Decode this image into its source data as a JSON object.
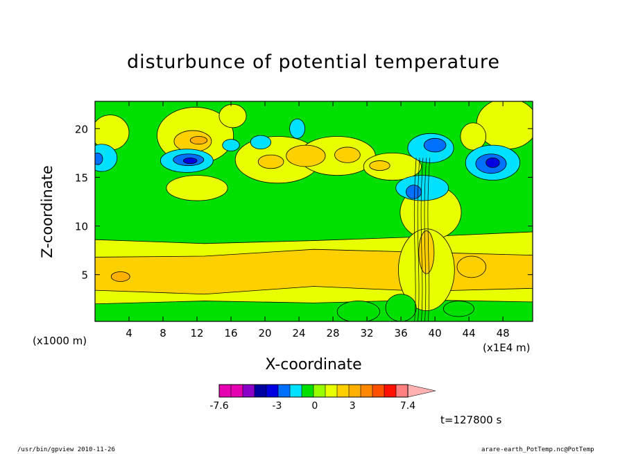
{
  "chart_data": {
    "type": "heatmap",
    "subtype": "filled-contour",
    "title": "disturbunce of potential temperature",
    "xlabel": "X-coordinate",
    "ylabel": "Z-coordinate",
    "x_unit": "(x1E4 m)",
    "y_unit": "(x1000 m)",
    "xlim": [
      0,
      51.5
    ],
    "ylim": [
      0.2,
      22.8
    ],
    "xticks": [
      4,
      8,
      12,
      16,
      20,
      24,
      28,
      32,
      36,
      40,
      44,
      48
    ],
    "yticks": [
      5,
      10,
      15,
      20
    ],
    "colorbar": {
      "labels": [
        "-7.6",
        "-3",
        "0",
        "3",
        "7.4"
      ],
      "label_values": [
        -7.6,
        -3,
        0,
        3,
        7.4
      ],
      "range": [
        -7.6,
        7.4
      ],
      "colors": [
        "#e500b0",
        "#e500b0",
        "#8a00c8",
        "#0000a0",
        "#0000e0",
        "#0070ff",
        "#00e0ff",
        "#00e000",
        "#99ff00",
        "#e8ff00",
        "#ffd000",
        "#ffb000",
        "#ff8800",
        "#ff5000",
        "#ff1000",
        "#ff8080",
        "#ffb0b0"
      ]
    },
    "time_label": "t=127800 s",
    "regions": [
      {
        "level": "yellow",
        "shape": "band",
        "x": [
          0,
          51.5
        ],
        "z_low": [
          2.0,
          2.3,
          2.1,
          2.4,
          2.2
        ],
        "z_high": [
          8.6,
          8.2,
          8.5,
          8.9,
          9.4
        ]
      },
      {
        "level": "orange",
        "shape": "band",
        "x": [
          0,
          51.5
        ],
        "z_low": [
          3.4,
          3.0,
          3.8,
          3.3,
          3.6
        ],
        "z_high": [
          6.8,
          6.9,
          7.6,
          7.3,
          7.0
        ]
      },
      {
        "level": "yellow",
        "cx": 12,
        "cz": 13.9,
        "rx": 3.6,
        "rz": 1.3
      },
      {
        "level": "yellow",
        "cx": 21.5,
        "cz": 16.8,
        "rx": 5,
        "rz": 2.4
      },
      {
        "level": "yellow",
        "cx": 28.5,
        "cz": 17.2,
        "rx": 4.5,
        "rz": 2
      },
      {
        "level": "yellow",
        "cx": 35,
        "cz": 16.1,
        "rx": 3.4,
        "rz": 1.4
      },
      {
        "level": "yellow",
        "cx": 11.8,
        "cz": 19.3,
        "rx": 4.5,
        "rz": 2.9
      },
      {
        "level": "yellow",
        "cx": 1.8,
        "cz": 19.6,
        "rx": 2.2,
        "rz": 1.8
      },
      {
        "level": "yellow",
        "cx": 16.2,
        "cz": 21.3,
        "rx": 1.6,
        "rz": 1.2
      },
      {
        "level": "yellow",
        "cx": 48.5,
        "cz": 20.5,
        "rx": 3.6,
        "rz": 2.6
      },
      {
        "level": "yellow",
        "cx": 44.5,
        "cz": 19.2,
        "rx": 1.5,
        "rz": 1.4
      },
      {
        "level": "yellow",
        "cx": 39.5,
        "cz": 11.4,
        "rx": 3.6,
        "rz": 2.8
      },
      {
        "level": "yellow",
        "cx": 39,
        "cz": 5.5,
        "rx": 3.3,
        "rz": 4.2
      },
      {
        "level": "orange",
        "cx": 11.5,
        "cz": 18.7,
        "rx": 2.2,
        "rz": 1.1
      },
      {
        "level": "orange",
        "cx": 20.7,
        "cz": 16.6,
        "rx": 1.5,
        "rz": 0.7
      },
      {
        "level": "orange",
        "cx": 24.8,
        "cz": 17.2,
        "rx": 2.3,
        "rz": 1.1
      },
      {
        "level": "orange",
        "cx": 29.7,
        "cz": 17.3,
        "rx": 1.5,
        "rz": 0.8
      },
      {
        "level": "orange",
        "cx": 33.5,
        "cz": 16.2,
        "rx": 1.2,
        "rz": 0.5
      },
      {
        "level": "orange",
        "cx": 44.3,
        "cz": 5.8,
        "rx": 1.7,
        "rz": 1.1
      },
      {
        "level": "orange",
        "cx": 39,
        "cz": 7.3,
        "rx": 0.9,
        "rz": 2.2
      },
      {
        "level": "darkorange",
        "cx": 3,
        "cz": 4.8,
        "rx": 1.1,
        "rz": 0.5
      },
      {
        "level": "darkorange",
        "cx": 12.2,
        "cz": 18.8,
        "rx": 1,
        "rz": 0.4
      },
      {
        "level": "cyan",
        "cx": 10.8,
        "cz": 16.7,
        "rx": 3.1,
        "rz": 1.2
      },
      {
        "level": "cyan",
        "cx": 46.8,
        "cz": 16.5,
        "rx": 3.2,
        "rz": 1.8
      },
      {
        "level": "cyan",
        "cx": 0.8,
        "cz": 17,
        "rx": 1.8,
        "rz": 1.4
      },
      {
        "level": "cyan",
        "cx": 39.5,
        "cz": 18,
        "rx": 2.7,
        "rz": 1.5
      },
      {
        "level": "cyan",
        "cx": 38.5,
        "cz": 13.9,
        "rx": 3.1,
        "rz": 1.3
      },
      {
        "level": "cyan",
        "cx": 23.8,
        "cz": 20,
        "rx": 0.9,
        "rz": 1.0
      },
      {
        "level": "cyan",
        "cx": 19.5,
        "cz": 18.6,
        "rx": 1.2,
        "rz": 0.7
      },
      {
        "level": "cyan",
        "cx": 16,
        "cz": 18.3,
        "rx": 1.0,
        "rz": 0.6
      },
      {
        "level": "blue",
        "cx": 11,
        "cz": 16.8,
        "rx": 1.8,
        "rz": 0.6
      },
      {
        "level": "blue",
        "cx": 46.6,
        "cz": 16.4,
        "rx": 1.8,
        "rz": 1.0
      },
      {
        "level": "blue",
        "cx": 40,
        "cz": 18.3,
        "rx": 1.3,
        "rz": 0.7
      },
      {
        "level": "blue",
        "cx": 37.5,
        "cz": 13.5,
        "rx": 0.9,
        "rz": 0.7
      },
      {
        "level": "blue",
        "cx": 0.3,
        "cz": 16.9,
        "rx": 0.6,
        "rz": 0.6
      },
      {
        "level": "darkblue",
        "cx": 11.2,
        "cz": 16.7,
        "rx": 0.8,
        "rz": 0.3
      },
      {
        "level": "darkblue",
        "cx": 46.8,
        "cz": 16.5,
        "rx": 0.8,
        "rz": 0.5
      },
      {
        "level": "green",
        "cx": 31,
        "cz": 1.2,
        "rx": 2.5,
        "rz": 1.1
      },
      {
        "level": "green",
        "cx": 36,
        "cz": 1.6,
        "rx": 1.8,
        "rz": 1.4
      },
      {
        "level": "green",
        "cx": 42.8,
        "cz": 1.5,
        "rx": 1.8,
        "rz": 0.8
      }
    ]
  },
  "footer": {
    "left": "/usr/bin/gpview  2010-11-26",
    "right": "arare-earth_PotTemp.nc@PotTemp"
  }
}
